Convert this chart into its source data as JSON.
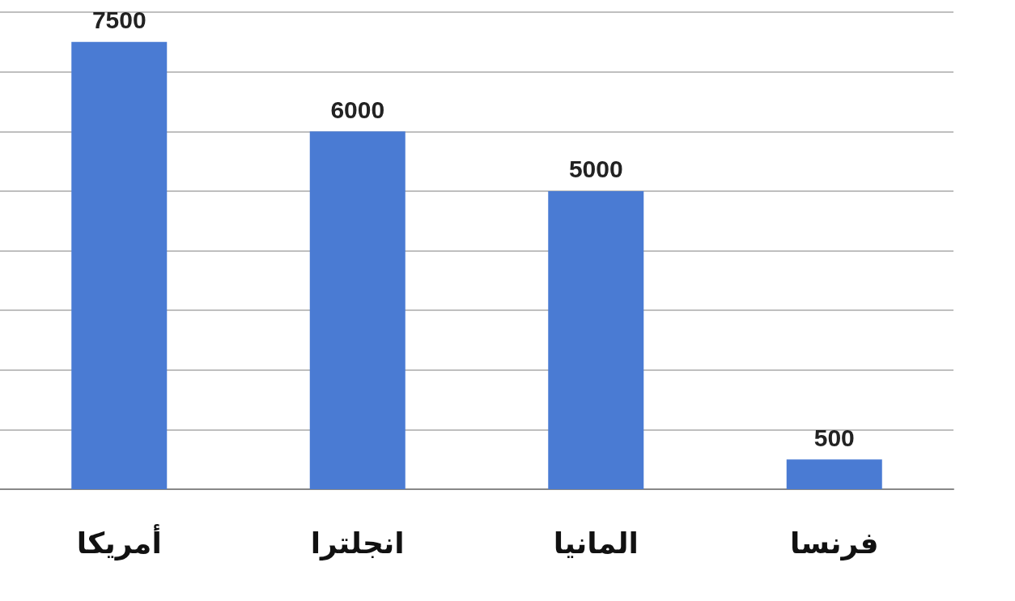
{
  "chart_data": {
    "type": "bar",
    "categories": [
      "أمريكا",
      "انجلترا",
      "المانيا",
      "فرنسا"
    ],
    "values": [
      7500,
      6000,
      5000,
      500
    ],
    "color": "#4a7bd3",
    "ylim": [
      0,
      8000
    ],
    "yticks": [
      {
        "value": 0,
        "label": null
      },
      {
        "value": 1000,
        "label": null
      },
      {
        "value": 2000,
        "label": null
      },
      {
        "value": 3000,
        "label": null
      },
      {
        "value": 4000,
        "label": null
      },
      {
        "value": 5000,
        "label": null
      },
      {
        "value": 6000,
        "label": null
      },
      {
        "value": 7000,
        "label": null
      },
      {
        "value": 8000,
        "label": null
      }
    ],
    "grid": true,
    "tick_labels": "x",
    "data_labels": true
  }
}
